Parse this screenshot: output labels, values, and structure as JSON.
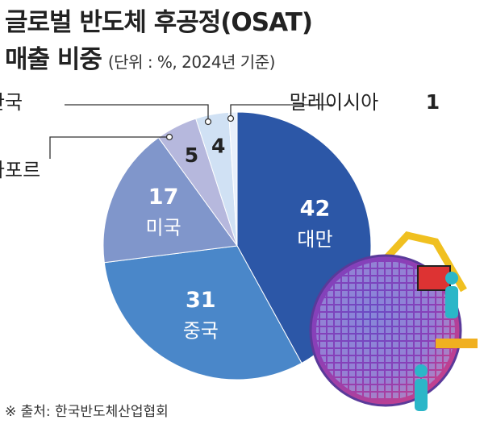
{
  "chart_data": {
    "type": "pie",
    "title": [
      "글로벌 반도체 후공정(OSAT)",
      "매출 비중"
    ],
    "subtitle": "(단위 : %, 2024년 기준)",
    "source": "※ 출처: 한국반도체산업협회",
    "categories": [
      "대만",
      "중국",
      "미국",
      "싱가포르",
      "한국",
      "말레이시아"
    ],
    "values": [
      42,
      31,
      17,
      5,
      4,
      1
    ],
    "colors": [
      "#2c57a7",
      "#4a87c9",
      "#8096cb",
      "#b6b8dd",
      "#d0e1f4",
      "#e8f0fb"
    ]
  }
}
